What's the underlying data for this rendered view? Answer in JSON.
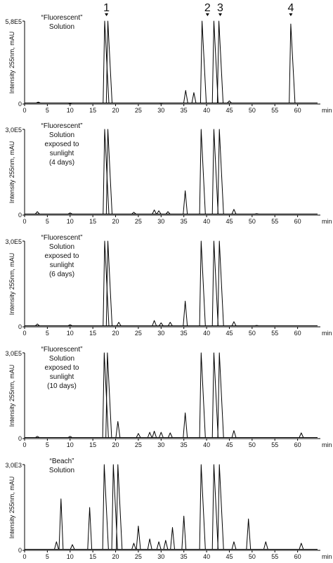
{
  "figure": {
    "peak_labels": [
      "1",
      "2",
      "3",
      "4"
    ],
    "peak_label_x_minutes": [
      18.0,
      40.2,
      43.0,
      58.5
    ],
    "x_unit": "min"
  },
  "chart_data": [
    {
      "type": "line",
      "annotation_lines": [
        "“Fluorescent”",
        "Solution"
      ],
      "ylabel": "Intensity 255nm, mAU",
      "ymax_label": "5,8E5",
      "xlim": [
        0,
        65
      ],
      "x_ticks": [
        "0",
        "5",
        "10",
        "15",
        "20",
        "25",
        "30",
        "35",
        "40",
        "45",
        "50",
        "55",
        "60"
      ],
      "x_unit_label": "min",
      "ylim": [
        0,
        580000
      ],
      "peaks": [
        {
          "x": 3.0,
          "y": 14000
        },
        {
          "x": 10.0,
          "y": 5000
        },
        {
          "x": 17.6,
          "y": 580000
        },
        {
          "x": 18.3,
          "y": 580000
        },
        {
          "x": 30.0,
          "y": 6000
        },
        {
          "x": 35.4,
          "y": 95000
        },
        {
          "x": 37.2,
          "y": 80000
        },
        {
          "x": 39.0,
          "y": 580000
        },
        {
          "x": 41.6,
          "y": 580000
        },
        {
          "x": 42.7,
          "y": 580000
        },
        {
          "x": 45.0,
          "y": 22000
        },
        {
          "x": 58.5,
          "y": 560000
        }
      ]
    },
    {
      "type": "line",
      "annotation_lines": [
        "“Fluorescent”",
        "Solution",
        "exposed to",
        "sunlight",
        "(4 days)"
      ],
      "ylabel": "Intensity 255nm, mAU",
      "ymax_label": "3,0E5",
      "xlim": [
        0,
        65
      ],
      "x_ticks": [
        "0",
        "5",
        "10",
        "15",
        "20",
        "25",
        "30",
        "35",
        "40",
        "45",
        "50",
        "55",
        "60"
      ],
      "x_unit_label": "min",
      "ylim": [
        0,
        300000
      ],
      "peaks": [
        {
          "x": 2.8,
          "y": 12000
        },
        {
          "x": 10.0,
          "y": 8000
        },
        {
          "x": 17.6,
          "y": 300000
        },
        {
          "x": 18.3,
          "y": 300000
        },
        {
          "x": 24.0,
          "y": 10000
        },
        {
          "x": 28.5,
          "y": 18000
        },
        {
          "x": 29.5,
          "y": 15000
        },
        {
          "x": 31.5,
          "y": 12000
        },
        {
          "x": 35.3,
          "y": 85000
        },
        {
          "x": 38.8,
          "y": 300000
        },
        {
          "x": 41.6,
          "y": 300000
        },
        {
          "x": 42.8,
          "y": 300000
        },
        {
          "x": 46.0,
          "y": 20000
        },
        {
          "x": 51.0,
          "y": 5000
        }
      ]
    },
    {
      "type": "line",
      "annotation_lines": [
        "“Fluorescent”",
        "Solution",
        "exposed to",
        "sunlight",
        "(6 days)"
      ],
      "ylabel": "Intensity 255nm, mAU",
      "ymax_label": "3,0E5",
      "xlim": [
        0,
        65
      ],
      "x_ticks": [
        "0",
        "5",
        "10",
        "15",
        "20",
        "25",
        "30",
        "35",
        "40",
        "45",
        "50",
        "55",
        "60"
      ],
      "x_unit_label": "min",
      "ylim": [
        0,
        300000
      ],
      "peaks": [
        {
          "x": 2.8,
          "y": 10000
        },
        {
          "x": 10.0,
          "y": 8000
        },
        {
          "x": 17.6,
          "y": 300000
        },
        {
          "x": 18.3,
          "y": 300000
        },
        {
          "x": 20.7,
          "y": 16000
        },
        {
          "x": 28.5,
          "y": 22000
        },
        {
          "x": 30.0,
          "y": 14000
        },
        {
          "x": 32.0,
          "y": 16000
        },
        {
          "x": 35.3,
          "y": 90000
        },
        {
          "x": 38.8,
          "y": 300000
        },
        {
          "x": 41.6,
          "y": 300000
        },
        {
          "x": 42.8,
          "y": 300000
        },
        {
          "x": 46.0,
          "y": 18000
        },
        {
          "x": 51.0,
          "y": 5000
        }
      ]
    },
    {
      "type": "line",
      "annotation_lines": [
        "“Fluorescent”",
        "Solution",
        "exposed to",
        "sunlight",
        "(10 days)"
      ],
      "ylabel": "Intensity 255nm, mAU",
      "ymax_label": "3,0E5",
      "xlim": [
        0,
        65
      ],
      "x_ticks": [
        "0",
        "5",
        "10",
        "15",
        "20",
        "25",
        "30",
        "35",
        "40",
        "45",
        "50",
        "55",
        "60"
      ],
      "x_unit_label": "min",
      "ylim": [
        0,
        300000
      ],
      "peaks": [
        {
          "x": 2.8,
          "y": 8000
        },
        {
          "x": 10.0,
          "y": 8000
        },
        {
          "x": 17.5,
          "y": 300000
        },
        {
          "x": 18.2,
          "y": 300000
        },
        {
          "x": 20.5,
          "y": 60000
        },
        {
          "x": 25.0,
          "y": 18000
        },
        {
          "x": 27.5,
          "y": 22000
        },
        {
          "x": 28.5,
          "y": 26000
        },
        {
          "x": 30.0,
          "y": 22000
        },
        {
          "x": 32.0,
          "y": 20000
        },
        {
          "x": 35.3,
          "y": 90000
        },
        {
          "x": 38.8,
          "y": 300000
        },
        {
          "x": 41.6,
          "y": 300000
        },
        {
          "x": 42.8,
          "y": 300000
        },
        {
          "x": 46.0,
          "y": 28000
        },
        {
          "x": 60.8,
          "y": 20000
        }
      ]
    },
    {
      "type": "line",
      "annotation_lines": [
        "“Beach”",
        "Solution"
      ],
      "ylabel": "Intensity 255nm, mAU",
      "ymax_label": "3,0E3",
      "xlim": [
        0,
        65
      ],
      "x_ticks": [
        "0",
        "5",
        "10",
        "15",
        "20",
        "25",
        "30",
        "35",
        "40",
        "45",
        "50",
        "55",
        "60"
      ],
      "x_unit_label": "min",
      "ylim": [
        0,
        3000
      ],
      "peaks": [
        {
          "x": 7.0,
          "y": 300
        },
        {
          "x": 8.0,
          "y": 1800
        },
        {
          "x": 10.5,
          "y": 200
        },
        {
          "x": 14.3,
          "y": 1500
        },
        {
          "x": 17.5,
          "y": 3000
        },
        {
          "x": 19.5,
          "y": 3000
        },
        {
          "x": 20.5,
          "y": 3000
        },
        {
          "x": 24.0,
          "y": 250
        },
        {
          "x": 25.0,
          "y": 850
        },
        {
          "x": 27.5,
          "y": 400
        },
        {
          "x": 29.5,
          "y": 300
        },
        {
          "x": 31.0,
          "y": 350
        },
        {
          "x": 32.5,
          "y": 800
        },
        {
          "x": 35.0,
          "y": 1200
        },
        {
          "x": 38.8,
          "y": 3000
        },
        {
          "x": 41.6,
          "y": 3000
        },
        {
          "x": 42.8,
          "y": 3000
        },
        {
          "x": 46.0,
          "y": 300
        },
        {
          "x": 49.2,
          "y": 1100
        },
        {
          "x": 53.0,
          "y": 300
        },
        {
          "x": 60.8,
          "y": 250
        }
      ]
    }
  ]
}
